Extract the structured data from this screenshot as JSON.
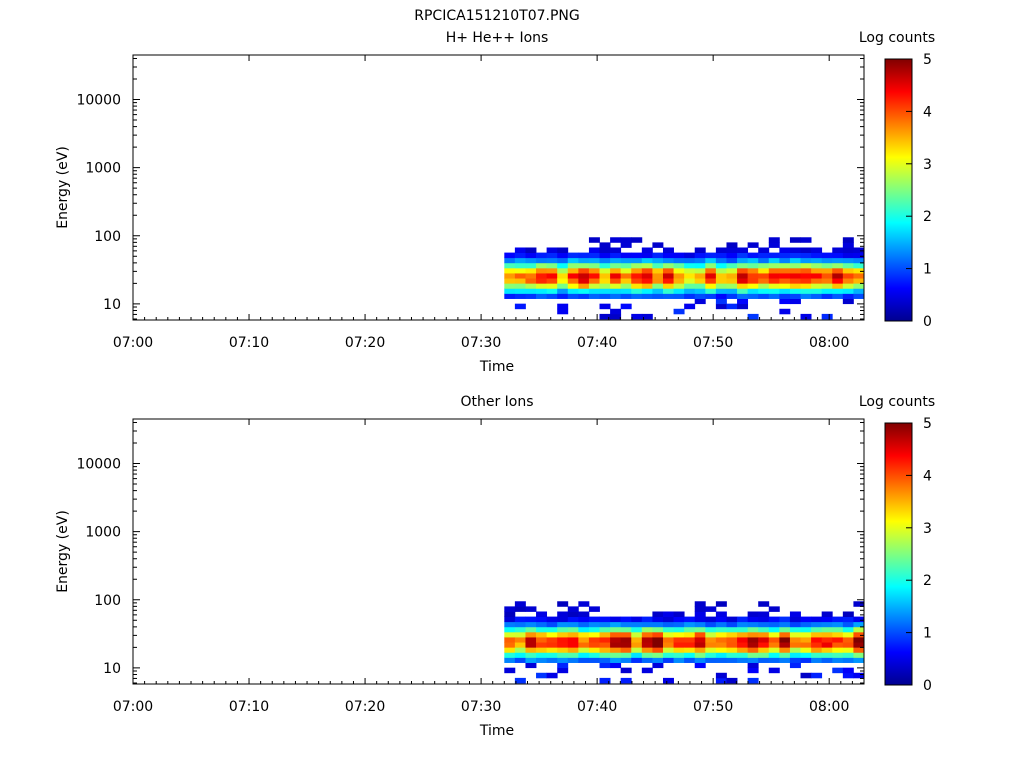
{
  "filename": "RPCICA151210T07.PNG",
  "x_axis": {
    "label": "Time",
    "range": [
      "07:00",
      "08:03"
    ],
    "ticks": [
      "07:00",
      "07:10",
      "07:20",
      "07:30",
      "07:40",
      "07:50",
      "08:00"
    ]
  },
  "y_axis": {
    "label": "Energy (eV)",
    "scale": "log",
    "range": [
      5.8,
      45000
    ],
    "ticks": [
      "10",
      "100",
      "1000",
      "10000"
    ]
  },
  "colorbar": {
    "label": "Log counts",
    "range": [
      0,
      5
    ],
    "ticks": [
      "0",
      "1",
      "2",
      "3",
      "4",
      "5"
    ],
    "colormap": "jet"
  },
  "chart_data": [
    {
      "type": "heatmap",
      "title": "H+ He++ Ions",
      "xlabel": "Time",
      "ylabel": "Energy (eV)",
      "colorbar_label": "Log counts",
      "data_start": "07:32",
      "data_end": "08:03",
      "energy_peak_eV": 25,
      "energy_band_eV": [
        13,
        95
      ],
      "peak_log_counts": 4.2,
      "seed": 11
    },
    {
      "type": "heatmap",
      "title": "Other Ions",
      "xlabel": "Time",
      "ylabel": "Energy (eV)",
      "colorbar_label": "Log counts",
      "data_start": "07:32",
      "data_end": "08:03",
      "energy_peak_eV": 24,
      "energy_band_eV": [
        12,
        95
      ],
      "peak_log_counts": 4.5,
      "seed": 29
    }
  ]
}
